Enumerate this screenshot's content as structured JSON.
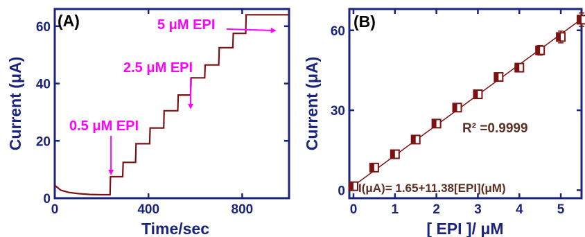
{
  "colors": {
    "axis": "#1a237e",
    "data": "#7a1212",
    "annotation": "#ff00ff",
    "equation": "#5d2e22"
  },
  "chart_data": [
    {
      "type": "line",
      "panel_label": "(A)",
      "xlabel": "Time/sec",
      "ylabel": "Current (μA)",
      "xlim": [
        0,
        1000
      ],
      "ylim": [
        0,
        66
      ],
      "xticks": [
        0,
        400,
        800
      ],
      "yticks": [
        0,
        20,
        40,
        60
      ],
      "xtick_labels": [
        "0",
        "400",
        "800"
      ],
      "ytick_labels": [
        "0",
        "20",
        "40",
        "60"
      ],
      "grid": false,
      "series": [
        {
          "x": [
            0,
            25,
            60,
            100,
            150,
            200,
            236,
            238,
            290,
            292,
            345,
            347,
            405,
            407,
            465,
            467,
            525,
            527,
            580,
            582,
            640,
            642,
            700,
            702,
            760,
            762,
            815,
            817,
            875,
            877,
            930,
            932,
            980,
            982,
            1000
          ],
          "y": [
            4.5,
            2.8,
            2.0,
            1.6,
            1.3,
            1.2,
            1.2,
            7.5,
            7.5,
            12.5,
            12.5,
            19.0,
            19.0,
            24.5,
            24.5,
            30.5,
            30.5,
            36.0,
            36.0,
            42.0,
            42.0,
            46.5,
            46.5,
            52.5,
            52.5,
            57.5,
            57.5,
            64.0,
            64.0,
            64.0,
            64.0,
            64.0,
            64.0,
            64.0,
            64.0
          ]
        }
      ],
      "annotations": [
        {
          "text": "0.5 μM EPI",
          "arrow_x": 240,
          "arrow_y": 8
        },
        {
          "text": "2.5 μM EPI",
          "arrow_x": 580,
          "arrow_y": 31
        },
        {
          "text": "5 μM EPI",
          "arrow_x": 940,
          "arrow_y": 58
        }
      ]
    },
    {
      "type": "scatter",
      "panel_label": "(B)",
      "xlabel": "[ EPI ]/ μM",
      "ylabel": "Current (μA)",
      "xlim": [
        -0.1,
        5.5
      ],
      "ylim": [
        -3,
        68
      ],
      "xticks": [
        0,
        1,
        2,
        3,
        4,
        5
      ],
      "yticks": [
        0,
        30,
        60
      ],
      "xtick_labels": [
        "0",
        "1",
        "2",
        "3",
        "4",
        "5"
      ],
      "ytick_labels": [
        "0",
        "30",
        "60"
      ],
      "grid": false,
      "x": [
        0,
        0.5,
        1.0,
        1.5,
        2.0,
        2.5,
        3.0,
        3.5,
        4.0,
        4.5,
        5.0,
        5.5
      ],
      "y": [
        1.5,
        8.5,
        13.5,
        19.0,
        25.0,
        31.0,
        36.0,
        42.5,
        46.0,
        52.5,
        57.5,
        64.0
      ],
      "error": [
        1.0,
        1.0,
        1.0,
        1.0,
        1.0,
        1.0,
        1.0,
        1.2,
        1.5,
        1.8,
        2.2,
        2.5
      ],
      "fit": {
        "intercept": 1.65,
        "slope": 11.38
      },
      "equation": "I(μA)= 1.65+11.38[EPI](μM)",
      "r2": "R² =0.9999"
    }
  ]
}
